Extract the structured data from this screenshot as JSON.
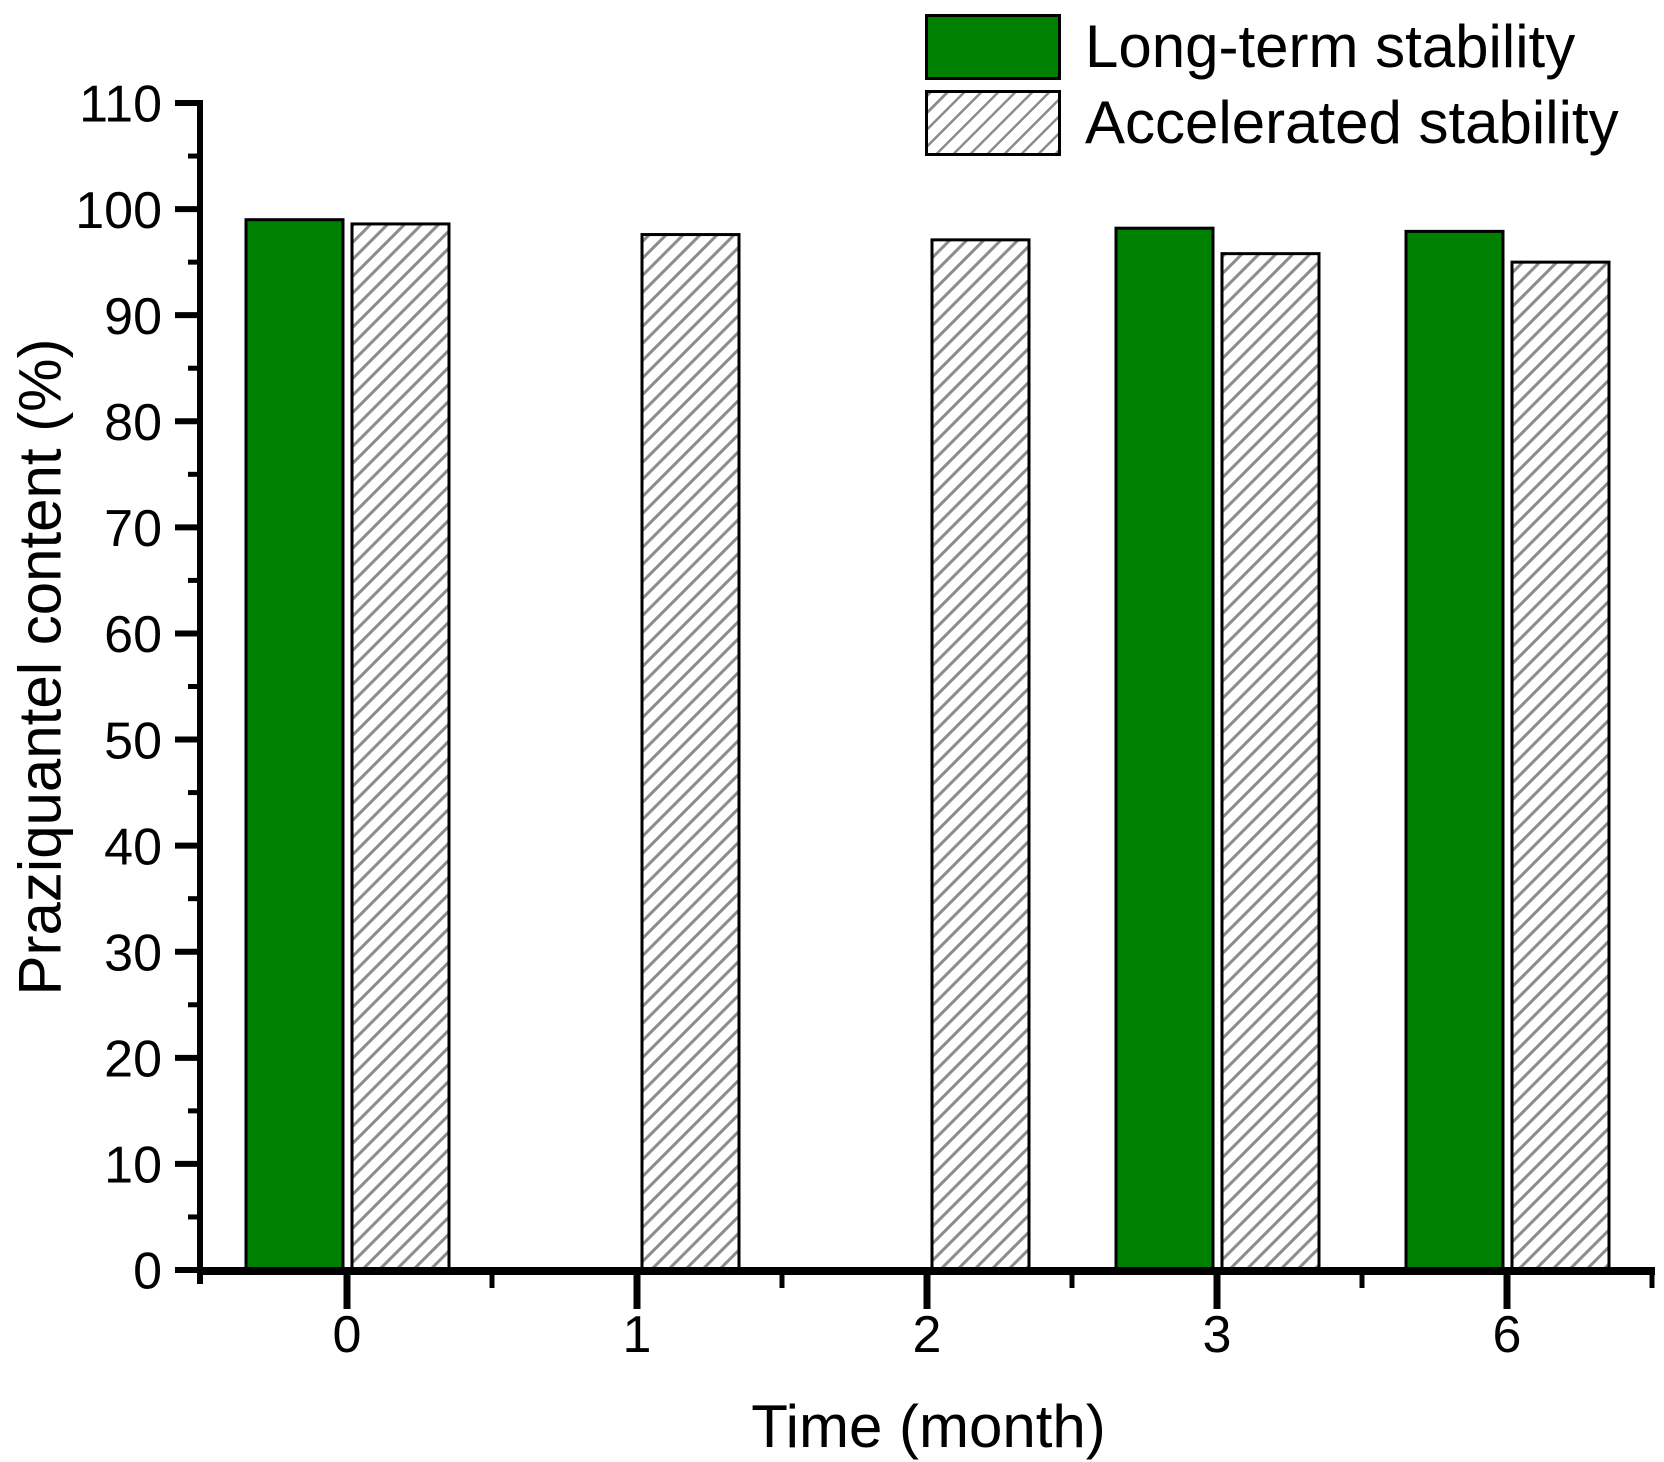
{
  "figure": {
    "background": "#ffffff",
    "text_color": "#000000"
  },
  "chart_data": {
    "type": "bar",
    "title": "",
    "categories": [
      "0",
      "1",
      "2",
      "3",
      "6"
    ],
    "series": [
      {
        "name": "Long-term stability",
        "values": [
          99.0,
          null,
          null,
          98.2,
          97.9
        ],
        "fill": "#008000",
        "pattern": "solid",
        "border_color": "#000000"
      },
      {
        "name": "Accelerated stability",
        "values": [
          98.6,
          97.6,
          97.1,
          95.8,
          95.0
        ],
        "fill": "#ffffff",
        "pattern": "diagonal-hatch",
        "hatch_color": "#8c8c8c",
        "border_color": "#000000"
      }
    ],
    "xlabel": "Time (month)",
    "ylabel": "Praziquantel content (%)",
    "ylim": [
      0,
      110
    ],
    "y_major_step": 10,
    "y_minor_step": 5,
    "y_major_ticks": [
      0,
      10,
      20,
      30,
      40,
      50,
      60,
      70,
      80,
      90,
      100,
      110
    ],
    "grid": false,
    "legend_position": "top-right",
    "axis_color": "#000000"
  }
}
